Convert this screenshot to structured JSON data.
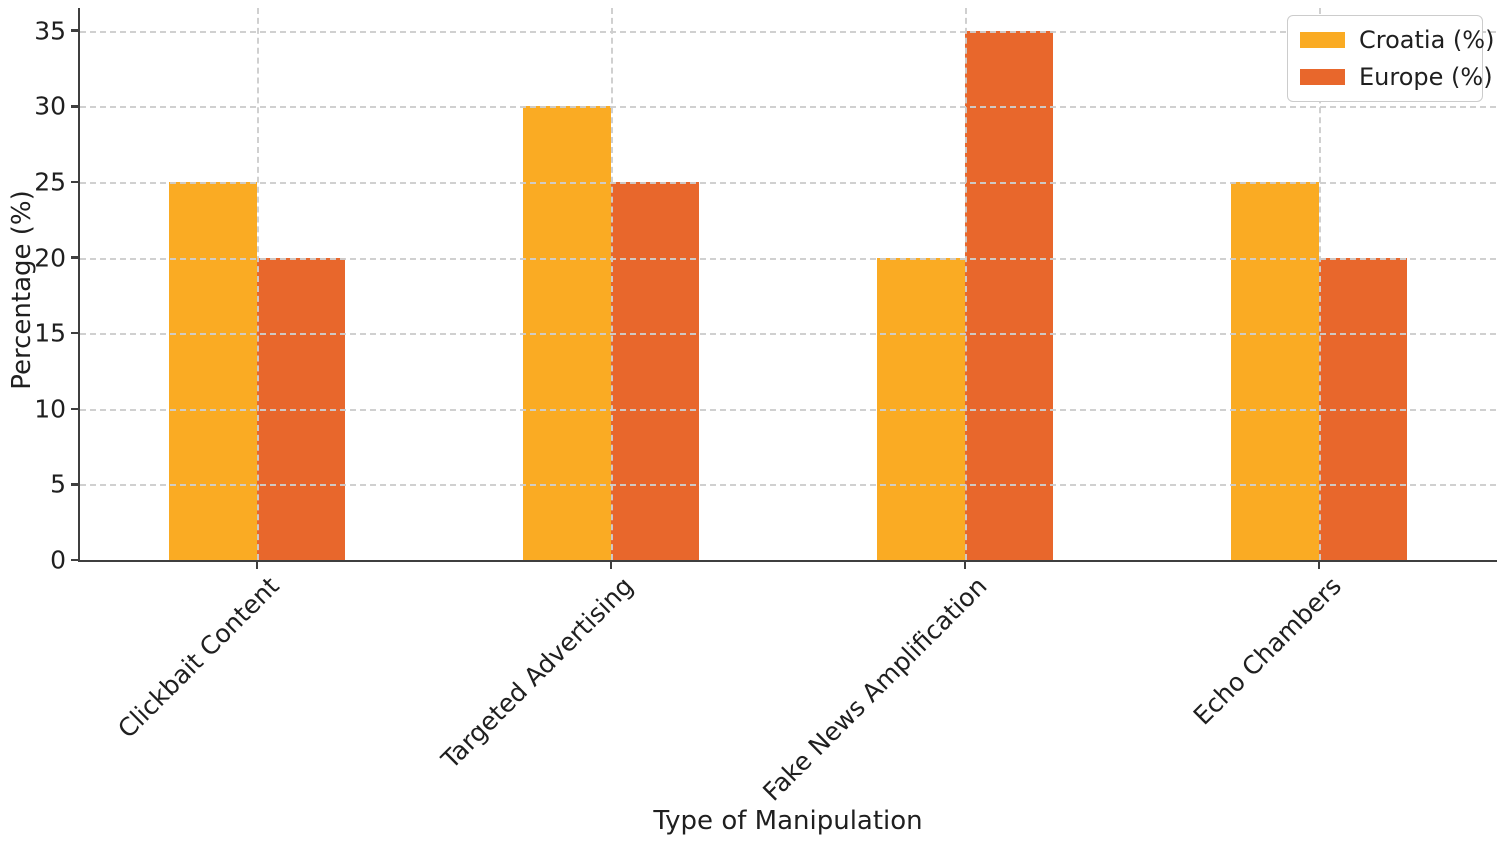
{
  "chart_data": {
    "type": "bar",
    "title": "",
    "xlabel": "Type of Manipulation",
    "ylabel": "Percentage (%)",
    "categories": [
      "Clickbait Content",
      "Targeted Advertising",
      "Fake News Amplification",
      "Echo Chambers"
    ],
    "series": [
      {
        "name": "Croatia (%)",
        "color": "#FAAB23",
        "values": [
          25,
          30,
          20,
          25
        ]
      },
      {
        "name": "Europe (%)",
        "color": "#E8672C",
        "values": [
          20,
          25,
          35,
          20
        ]
      }
    ],
    "y_ticks": [
      0,
      5,
      10,
      15,
      20,
      25,
      30,
      35
    ],
    "ylim": [
      0,
      36.5
    ],
    "grid": "dashed horizontal and vertical, drawn above bars",
    "legend_position": "upper right",
    "colors": {
      "axis": "#3f3f3f",
      "grid": "#cdcdcd",
      "text": "#1f1f1f"
    }
  }
}
